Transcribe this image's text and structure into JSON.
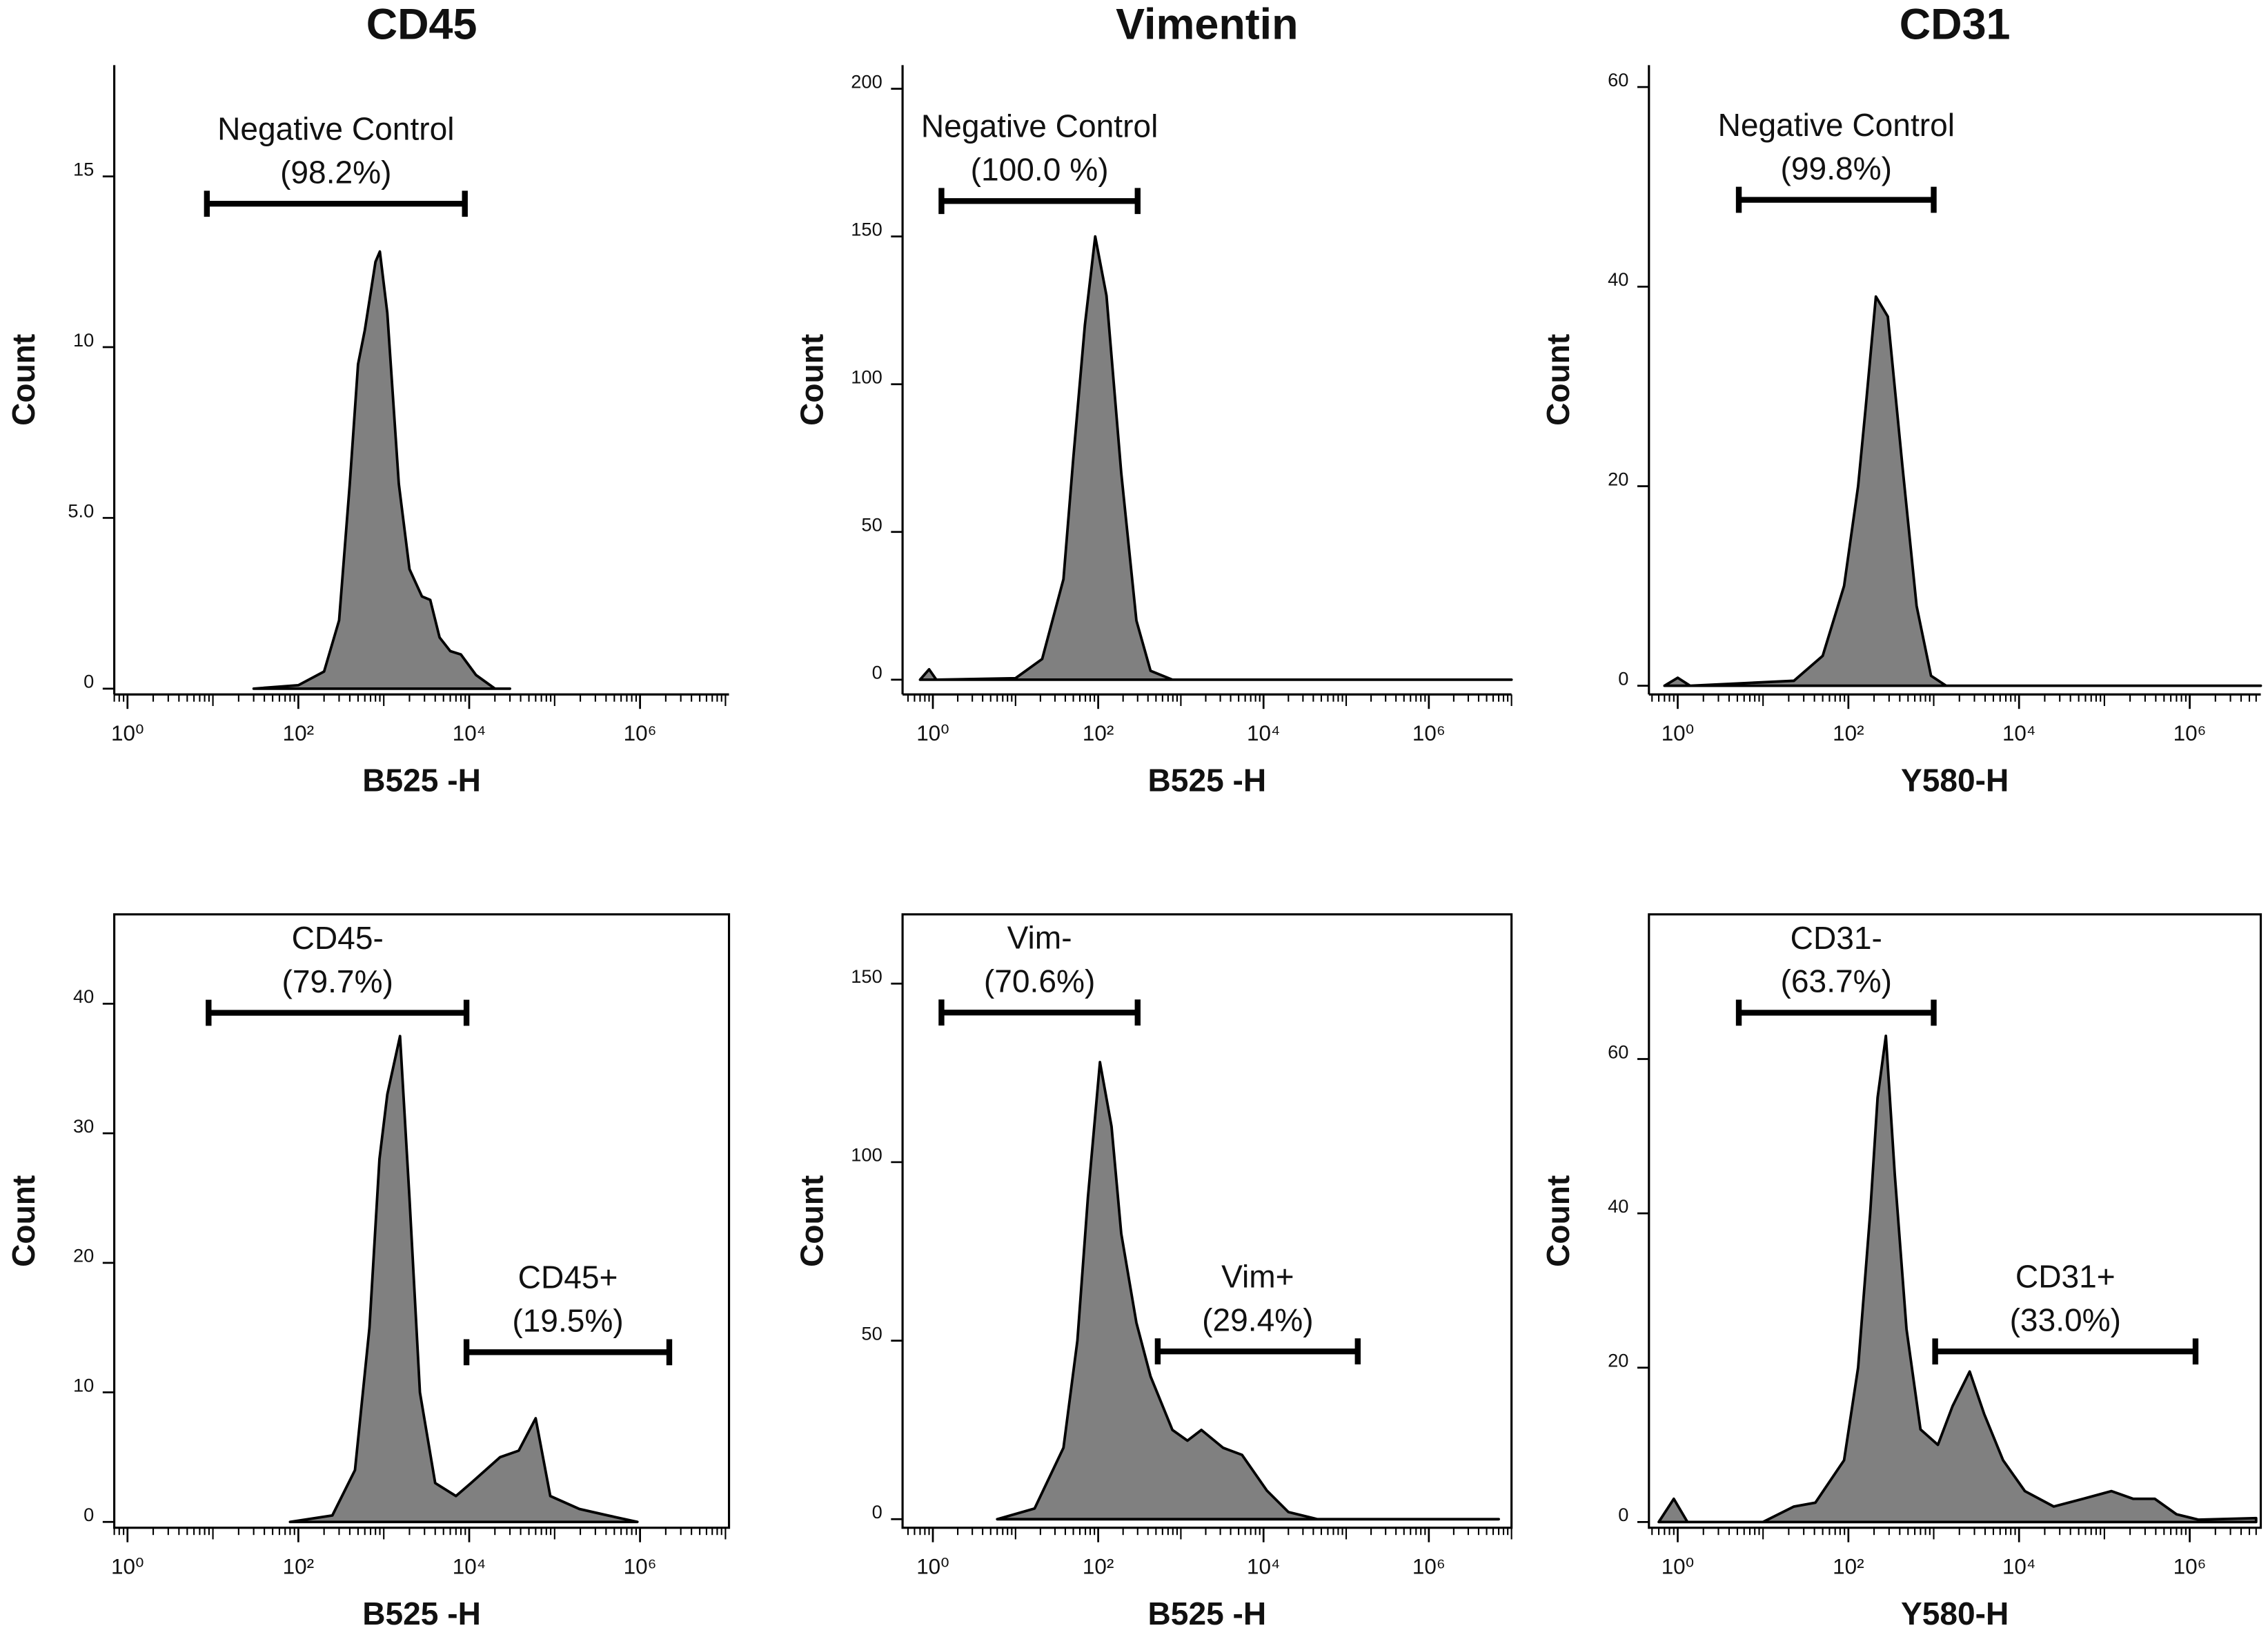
{
  "chart_data": [
    {
      "type": "area",
      "title": "CD45",
      "xlabel": "B525 -H",
      "ylabel": "Count",
      "log_x": true,
      "frame": false,
      "color": "#808080",
      "xlim": [
        0.7,
        11000000
      ],
      "xticks": [
        {
          "value": 1,
          "label": "10⁰"
        },
        {
          "value": 100,
          "label": "10²"
        },
        {
          "value": 10000,
          "label": "10⁴"
        },
        {
          "value": 1000000,
          "label": "10⁶"
        }
      ],
      "ylim": [
        -0.17,
        18.26
      ],
      "yticks": [
        0,
        {
          "value": 5,
          "label": "5.0"
        },
        10,
        15
      ],
      "x": [
        30,
        100,
        200,
        300,
        400,
        500,
        600,
        800,
        900,
        1100,
        1500,
        2000,
        2800,
        3500,
        4500,
        6000,
        8000,
        12000,
        20000,
        30000
      ],
      "values": [
        0,
        0.1,
        0.5,
        2,
        6,
        9.5,
        10.5,
        12.5,
        12.8,
        11,
        6,
        3.5,
        2.7,
        2.6,
        1.5,
        1.1,
        1,
        0.4,
        0,
        0
      ],
      "gates": [
        {
          "label": "Negative Control",
          "percent": "(98.2%)",
          "x": [
            8.5,
            8900
          ],
          "y": 14.2
        }
      ]
    },
    {
      "type": "area",
      "title": "Vimentin",
      "xlabel": "B525 -H",
      "ylabel": "Count",
      "log_x": true,
      "frame": false,
      "color": "#808080",
      "xlim": [
        0.43,
        10000000
      ],
      "xticks": [
        {
          "value": 1,
          "label": "10⁰"
        },
        {
          "value": 100,
          "label": "10²"
        },
        {
          "value": 10000,
          "label": "10⁴"
        },
        {
          "value": 1000000,
          "label": "10⁶"
        }
      ],
      "ylim": [
        -5,
        208
      ],
      "yticks": [
        0,
        50,
        100,
        150,
        200
      ],
      "x": [
        0.7,
        0.9,
        1.1,
        10,
        21,
        38,
        50,
        69,
        92,
        126,
        190,
        290,
        430,
        790,
        10000000
      ],
      "values": [
        0,
        3.5,
        0,
        0.5,
        7,
        34,
        75,
        120,
        150,
        130,
        70,
        20,
        3,
        0,
        0
      ],
      "gates": [
        {
          "label": "Negative Control",
          "percent": "(100.0 %)",
          "x": [
            1.27,
            300
          ],
          "y": 162
        }
      ]
    },
    {
      "type": "area",
      "title": "CD31",
      "xlabel": "Y580-H",
      "ylabel": "Count",
      "log_x": true,
      "frame": false,
      "color": "#808080",
      "xlim": [
        0.46,
        6800000
      ],
      "xticks": [
        {
          "value": 1,
          "label": "10⁰"
        },
        {
          "value": 100,
          "label": "10²"
        },
        {
          "value": 10000,
          "label": "10⁴"
        },
        {
          "value": 1000000,
          "label": "10⁶"
        }
      ],
      "ylim": [
        -0.87,
        62.2
      ],
      "yticks": [
        0,
        20,
        40,
        60
      ],
      "x": [
        0.7,
        1,
        1.4,
        23,
        50,
        89,
        130,
        160,
        210,
        290,
        430,
        630,
        930,
        1400,
        6800000
      ],
      "values": [
        0,
        0.8,
        0,
        0.5,
        3,
        10,
        20,
        28,
        39,
        37,
        22,
        8,
        1,
        0,
        0
      ],
      "gates": [
        {
          "label": "Negative Control",
          "percent": "(99.8%)",
          "x": [
            5.2,
            1000
          ],
          "y": 48.7
        }
      ]
    },
    {
      "type": "area",
      "xlabel": "B525 -H",
      "ylabel": "Count",
      "log_x": true,
      "frame": true,
      "color": "#808080",
      "xlim": [
        0.7,
        11000000
      ],
      "xticks": [
        {
          "value": 1,
          "label": "10⁰"
        },
        {
          "value": 100,
          "label": "10²"
        },
        {
          "value": 10000,
          "label": "10⁴"
        },
        {
          "value": 1000000,
          "label": "10⁶"
        }
      ],
      "ylim": [
        -0.45,
        46.9
      ],
      "yticks": [
        0,
        10,
        20,
        30,
        40
      ],
      "x": [
        80,
        250,
        460,
        680,
        890,
        1100,
        1550,
        2000,
        2650,
        4000,
        7000,
        10500,
        23000,
        38000,
        60000,
        89000,
        195000,
        420000,
        930000
      ],
      "values": [
        0,
        0.5,
        4,
        15,
        28,
        33,
        37.5,
        25,
        10,
        3,
        2,
        3,
        5,
        5.5,
        8,
        2,
        1,
        0.5,
        0
      ],
      "gates": [
        {
          "label": "CD45-",
          "percent": "(79.7%)",
          "x": [
            8.9,
            9300
          ],
          "y": 39.3
        },
        {
          "label": "CD45+",
          "percent": "(19.5%)",
          "x": [
            9300,
            2200000
          ],
          "y": 13.1
        }
      ]
    },
    {
      "type": "area",
      "xlabel": "B525 -H",
      "ylabel": "Count",
      "log_x": true,
      "frame": true,
      "color": "#808080",
      "xlim": [
        0.43,
        10000000
      ],
      "xticks": [
        {
          "value": 1,
          "label": "10⁰"
        },
        {
          "value": 100,
          "label": "10²"
        },
        {
          "value": 10000,
          "label": "10⁴"
        },
        {
          "value": 1000000,
          "label": "10⁶"
        }
      ],
      "ylim": [
        -2.4,
        169.4
      ],
      "yticks": [
        0,
        50,
        100,
        150
      ],
      "x": [
        6,
        17,
        38,
        56,
        75,
        105,
        145,
        190,
        290,
        430,
        790,
        1200,
        1770,
        3240,
        5500,
        11000,
        20000,
        45000,
        7000000
      ],
      "values": [
        0,
        3,
        20,
        50,
        90,
        128,
        110,
        80,
        55,
        40,
        25,
        22,
        25,
        20,
        18,
        8,
        2,
        0,
        0
      ],
      "gates": [
        {
          "label": "Vim-",
          "percent": "(70.6%)",
          "x": [
            1.27,
            300
          ],
          "y": 141.9
        },
        {
          "label": "Vim+",
          "percent": "(29.4%)",
          "x": [
            525,
            138000
          ],
          "y": 47
        }
      ]
    },
    {
      "type": "area",
      "xlabel": "Y580-H",
      "ylabel": "Count",
      "log_x": true,
      "frame": true,
      "color": "#808080",
      "xlim": [
        0.46,
        6800000
      ],
      "xticks": [
        {
          "value": 1,
          "label": "10⁰"
        },
        {
          "value": 100,
          "label": "10²"
        },
        {
          "value": 10000,
          "label": "10⁴"
        },
        {
          "value": 1000000,
          "label": "10⁶"
        }
      ],
      "ylim": [
        -0.75,
        78.75
      ],
      "yticks": [
        0,
        20,
        40,
        60
      ],
      "x": [
        0.6,
        0.9,
        1.3,
        10,
        23,
        41,
        89,
        130,
        180,
        220,
        275,
        350,
        480,
        700,
        1120,
        1660,
        2640,
        3900,
        6500,
        11700,
        25500,
        56000,
        121000,
        218000,
        390000,
        700000,
        1260000,
        6000000
      ],
      "values": [
        0,
        3,
        0,
        0,
        2,
        2.5,
        8,
        20,
        40,
        55,
        63,
        45,
        25,
        12,
        10,
        15,
        19.5,
        14,
        8,
        4,
        2,
        3,
        4,
        3,
        3,
        1,
        0.3,
        0.5
      ],
      "gates": [
        {
          "label": "CD31-",
          "percent": "(63.7%)",
          "x": [
            5.2,
            1000
          ],
          "y": 66
        },
        {
          "label": "CD31+",
          "percent": "(33.0%)",
          "x": [
            1040,
            1170000
          ],
          "y": 22.1
        }
      ]
    }
  ]
}
